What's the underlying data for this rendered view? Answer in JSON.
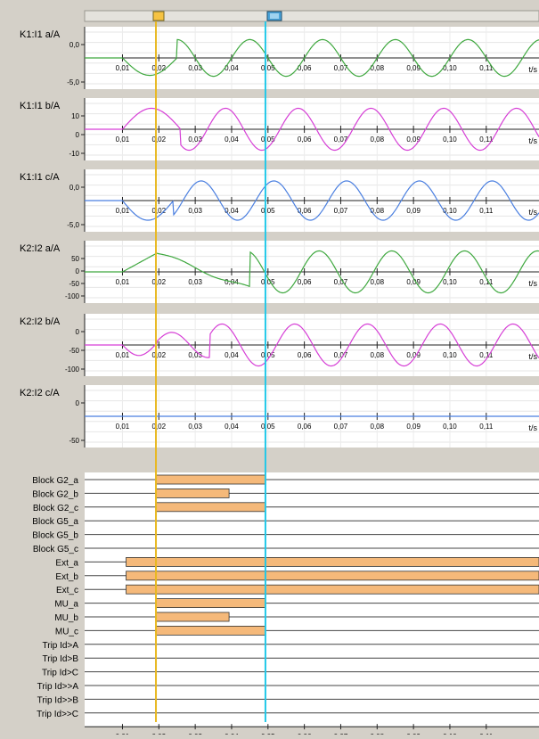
{
  "scrollbar": {
    "thumb_left_color": "#f6c342",
    "thumb_right_color": "#4aa3d9"
  },
  "x_tick_labels": [
    "0,01",
    "0,02",
    "0,03",
    "0,04",
    "0,05",
    "0,06",
    "0,07",
    "0,08",
    "0,09",
    "0,10",
    "0,11"
  ],
  "x_unit": "t/s",
  "cursors": {
    "left_t": 0.0192,
    "left_color": "#e8b820",
    "right_t": 0.0493,
    "right_color": "#22c8e8"
  },
  "panels": [
    {
      "label": "K1:I1 a/A",
      "color": "#3fa83f",
      "yticks": [
        "0,0",
        "-5,0"
      ],
      "amp": 0.7,
      "phase": 0,
      "style": "a"
    },
    {
      "label": "K1:I1 b/A",
      "color": "#d63fd6",
      "yticks": [
        "10",
        "0",
        "-10"
      ],
      "amp": 0.8,
      "phase": 2.1,
      "style": "b"
    },
    {
      "label": "K1:I1 c/A",
      "color": "#4a7fe0",
      "yticks": [
        "0,0",
        "-5,0"
      ],
      "amp": 0.75,
      "phase": 4.2,
      "style": "c"
    },
    {
      "label": "K2:I2 a/A",
      "color": "#3fa83f",
      "yticks": [
        "50",
        "0",
        "-50",
        "-100"
      ],
      "amp": 0.8,
      "phase": 0.3,
      "style": "d"
    },
    {
      "label": "K2:I2 b/A",
      "color": "#d63fd6",
      "yticks": [
        "0",
        "-50",
        "-100"
      ],
      "amp": 0.8,
      "phase": 2.4,
      "style": "e"
    },
    {
      "label": "K2:I2 c/A",
      "color": "#4a7fe0",
      "yticks": [
        "0",
        "-50"
      ],
      "amp": 0,
      "phase": 0,
      "style": "flat"
    }
  ],
  "binary_channels": [
    {
      "label": "Block G2_a",
      "start": 0.0192,
      "end": 0.0493
    },
    {
      "label": "Block G2_b",
      "start": 0.0192,
      "end": 0.0393
    },
    {
      "label": "Block G2_c",
      "start": 0.0192,
      "end": 0.0493
    },
    {
      "label": "Block G5_a",
      "start": null,
      "end": null
    },
    {
      "label": "Block G5_b",
      "start": null,
      "end": null
    },
    {
      "label": "Block G5_c",
      "start": null,
      "end": null
    },
    {
      "label": "Ext_a",
      "start": 0.011,
      "end": 0.125
    },
    {
      "label": "Ext_b",
      "start": 0.011,
      "end": 0.125
    },
    {
      "label": "Ext_c",
      "start": 0.011,
      "end": 0.125
    },
    {
      "label": "MU_a",
      "start": 0.0192,
      "end": 0.0493
    },
    {
      "label": "MU_b",
      "start": 0.0192,
      "end": 0.0393
    },
    {
      "label": "MU_c",
      "start": 0.0192,
      "end": 0.0493
    },
    {
      "label": "Trip Id>A",
      "start": null,
      "end": null
    },
    {
      "label": "Trip Id>B",
      "start": null,
      "end": null
    },
    {
      "label": "Trip Id>C",
      "start": null,
      "end": null
    },
    {
      "label": "Trip Id>>A",
      "start": null,
      "end": null
    },
    {
      "label": "Trip Id>>B",
      "start": null,
      "end": null
    },
    {
      "label": "Trip Id>>C",
      "start": null,
      "end": null
    }
  ],
  "bar_fill_color": "#f5b97a",
  "bar_stroke_color": "#333333"
}
